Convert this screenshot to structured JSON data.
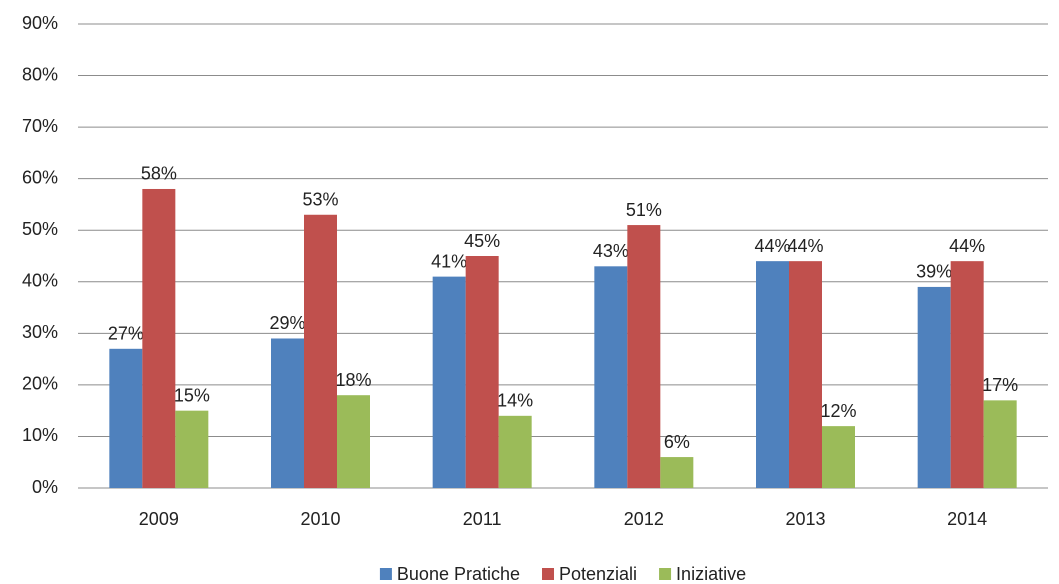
{
  "chart_data": {
    "type": "bar",
    "categories": [
      "2009",
      "2010",
      "2011",
      "2012",
      "2013",
      "2014"
    ],
    "series": [
      {
        "name": "Buone Pratiche",
        "color": "#4f81bd",
        "values": [
          27,
          29,
          41,
          43,
          44,
          39
        ],
        "value_labels": [
          "27%",
          "29%",
          "41%",
          "43%",
          "44%",
          "39%"
        ]
      },
      {
        "name": "Potenziali",
        "color": "#c0504d",
        "values": [
          58,
          53,
          45,
          51,
          44,
          44
        ],
        "value_labels": [
          "58%",
          "53%",
          "45%",
          "51%",
          "44%",
          "44%"
        ]
      },
      {
        "name": "Iniziative",
        "color": "#9bbb59",
        "values": [
          15,
          18,
          14,
          6,
          12,
          17
        ],
        "value_labels": [
          "15%",
          "18%",
          "14%",
          "6%",
          "12%",
          "17%"
        ]
      }
    ],
    "ylim": [
      0,
      90
    ],
    "yticks": [
      {
        "value": 0,
        "label": "0%"
      },
      {
        "value": 10,
        "label": "10%"
      },
      {
        "value": 20,
        "label": "20%"
      },
      {
        "value": 30,
        "label": "30%"
      },
      {
        "value": 40,
        "label": "40%"
      },
      {
        "value": 50,
        "label": "50%"
      },
      {
        "value": 60,
        "label": "60%"
      },
      {
        "value": 70,
        "label": "70%"
      },
      {
        "value": 80,
        "label": "80%"
      },
      {
        "value": 90,
        "label": "90%"
      }
    ],
    "grid": true,
    "legend": "bottom"
  }
}
